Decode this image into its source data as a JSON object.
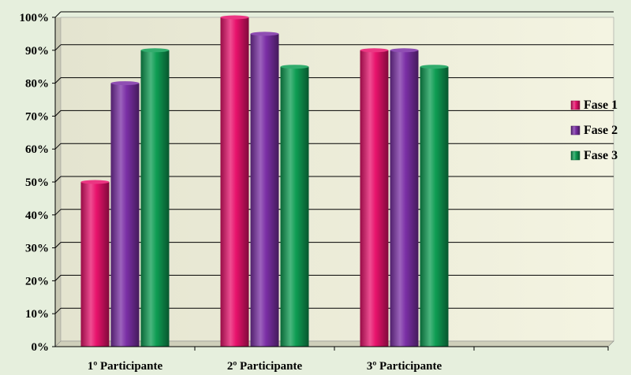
{
  "chart_data": {
    "type": "bar",
    "title": "",
    "xlabel": "",
    "ylabel": "",
    "categories": [
      "1º Participante",
      "2º Participante",
      "3º Participante",
      ""
    ],
    "series": [
      {
        "name": "Fase 1",
        "values": [
          50,
          100,
          90,
          null
        ]
      },
      {
        "name": "Fase 2",
        "values": [
          80,
          95,
          90,
          null
        ]
      },
      {
        "name": "Fase 3",
        "values": [
          90,
          85,
          85,
          null
        ]
      }
    ],
    "ylim": [
      0,
      100
    ],
    "y_ticks": [
      "0%",
      "10%",
      "20%",
      "30%",
      "40%",
      "50%",
      "60%",
      "70%",
      "80%",
      "90%",
      "100%"
    ],
    "y_tick_values": [
      0,
      10,
      20,
      30,
      40,
      50,
      60,
      70,
      80,
      90,
      100
    ],
    "grid": true,
    "legend_position": "right",
    "colors": {
      "Fase 1": "#e8126c",
      "Fase 2": "#7b2fa6",
      "Fase 3": "#0e9d53",
      "plot_background": "#efefdc",
      "page_background": "#e6efdd",
      "gridline": "#000000"
    }
  }
}
